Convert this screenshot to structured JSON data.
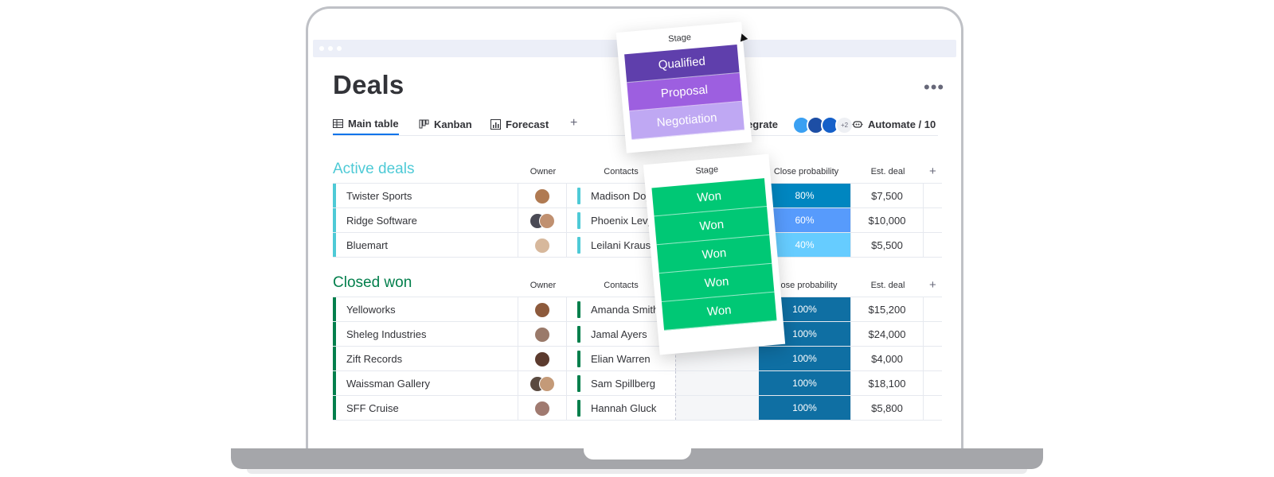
{
  "header": {
    "title": "Deals",
    "more_label": "•••"
  },
  "tabs": [
    {
      "label": "Main table",
      "icon": "table-icon",
      "active": true
    },
    {
      "label": "Kanban",
      "icon": "kanban-icon",
      "active": false
    },
    {
      "label": "Forecast",
      "icon": "chart-icon",
      "active": false
    }
  ],
  "tab_add": "+",
  "integrate": {
    "label": "egrate",
    "extra_count": "+2"
  },
  "automate": {
    "label": "Automate / 10"
  },
  "columns": {
    "owner": "Owner",
    "contacts": "Contacts",
    "stage": "Stage",
    "close_probability": "Close probability",
    "close_probability_cut": "ose probability",
    "est_deal": "Est. deal",
    "add": "+"
  },
  "active_group": {
    "title": "Active deals",
    "color": "#4ecad6",
    "rows": [
      {
        "name": "Twister Sports",
        "contact": "Madison Doy",
        "probability": "80%",
        "deal": "$7,500",
        "prob_color": "#0086c0",
        "avatars": 1
      },
      {
        "name": "Ridge Software",
        "contact": "Phoenix Levy",
        "probability": "60%",
        "deal": "$10,000",
        "prob_color": "#579bfc",
        "avatars": 2
      },
      {
        "name": "Bluemart",
        "contact": "Leilani Krause",
        "probability": "40%",
        "deal": "$5,500",
        "prob_color": "#66ccff",
        "avatars": 1
      }
    ]
  },
  "won_group": {
    "title": "Closed won",
    "color": "#037f4c",
    "rows": [
      {
        "name": "Yelloworks",
        "contact": "Amanda Smith",
        "probability": "100%",
        "deal": "$15,200",
        "avatars": 1
      },
      {
        "name": "Sheleg Industries",
        "contact": "Jamal Ayers",
        "probability": "100%",
        "deal": "$24,000",
        "avatars": 1
      },
      {
        "name": "Zift Records",
        "contact": "Elian Warren",
        "probability": "100%",
        "deal": "$4,000",
        "avatars": 1
      },
      {
        "name": "Waissman Gallery",
        "contact": "Sam Spillberg",
        "probability": "100%",
        "deal": "$18,100",
        "avatars": 2
      },
      {
        "name": "SFF Cruise",
        "contact": "Hannah Gluck",
        "probability": "100%",
        "deal": "$5,800",
        "avatars": 1
      }
    ]
  },
  "stage_card_top": {
    "header": "Stage",
    "cells": [
      {
        "label": "Qualified",
        "color": "#5f3fac"
      },
      {
        "label": "Proposal",
        "color": "#9d5fe0"
      },
      {
        "label": "Negotiation",
        "color": "#bfa8f3"
      }
    ]
  },
  "stage_card_bottom": {
    "header": "Stage",
    "cells": [
      {
        "label": "Won",
        "color": "#00c875"
      },
      {
        "label": "Won",
        "color": "#00c875"
      },
      {
        "label": "Won",
        "color": "#00c875"
      },
      {
        "label": "Won",
        "color": "#00c875"
      },
      {
        "label": "Won",
        "color": "#00c875"
      }
    ]
  },
  "won_prob_color": "#0f6fa3"
}
